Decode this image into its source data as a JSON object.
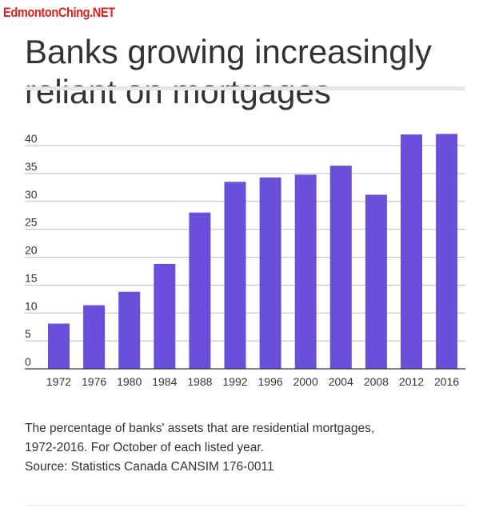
{
  "watermark": "EdmontonChing.NET",
  "title": "Banks growing increasingly reliant on mortgages",
  "caption": {
    "line1": "The percentage of banks' assets that are residential mortgages,",
    "line2": "1972-2016. For October of each listed year.",
    "source": "Source: Statistics Canada CANSIM 176-0011"
  },
  "colors": {
    "bar": "#6a4fdb",
    "grid": "#bdbdbd",
    "axis": "#333333",
    "text": "#333333"
  },
  "chart_data": {
    "type": "bar",
    "title": "",
    "xlabel": "",
    "ylabel": "",
    "categories": [
      "1972",
      "1976",
      "1980",
      "1984",
      "1988",
      "1992",
      "1996",
      "2000",
      "2004",
      "2008",
      "2012",
      "2016"
    ],
    "values": [
      8.1,
      11.4,
      13.8,
      18.8,
      28.0,
      33.5,
      34.3,
      34.8,
      36.4,
      31.2,
      42.0,
      42.1
    ],
    "ylim": [
      0,
      40
    ],
    "yticks": [
      0,
      5,
      10,
      15,
      20,
      25,
      30,
      35,
      40
    ],
    "grid": true,
    "legend": "none"
  }
}
